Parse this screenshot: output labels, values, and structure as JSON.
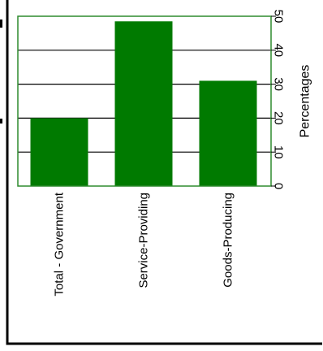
{
  "chart_data": {
    "type": "bar",
    "orientation": "vertical, image rotated 90 degrees clockwise",
    "categories": [
      "Total - Government",
      "Service-Providing",
      "Goods-Producing"
    ],
    "values": [
      20,
      48.5,
      31
    ],
    "ylabel": "Percentages",
    "ylim": [
      0,
      50
    ],
    "yticks": [
      0,
      10,
      20,
      30,
      40,
      50
    ],
    "grid": true,
    "legend": "none",
    "colors": {
      "bar": "#007a00",
      "frame": "#2e8b2e",
      "grid": "#000000"
    }
  }
}
